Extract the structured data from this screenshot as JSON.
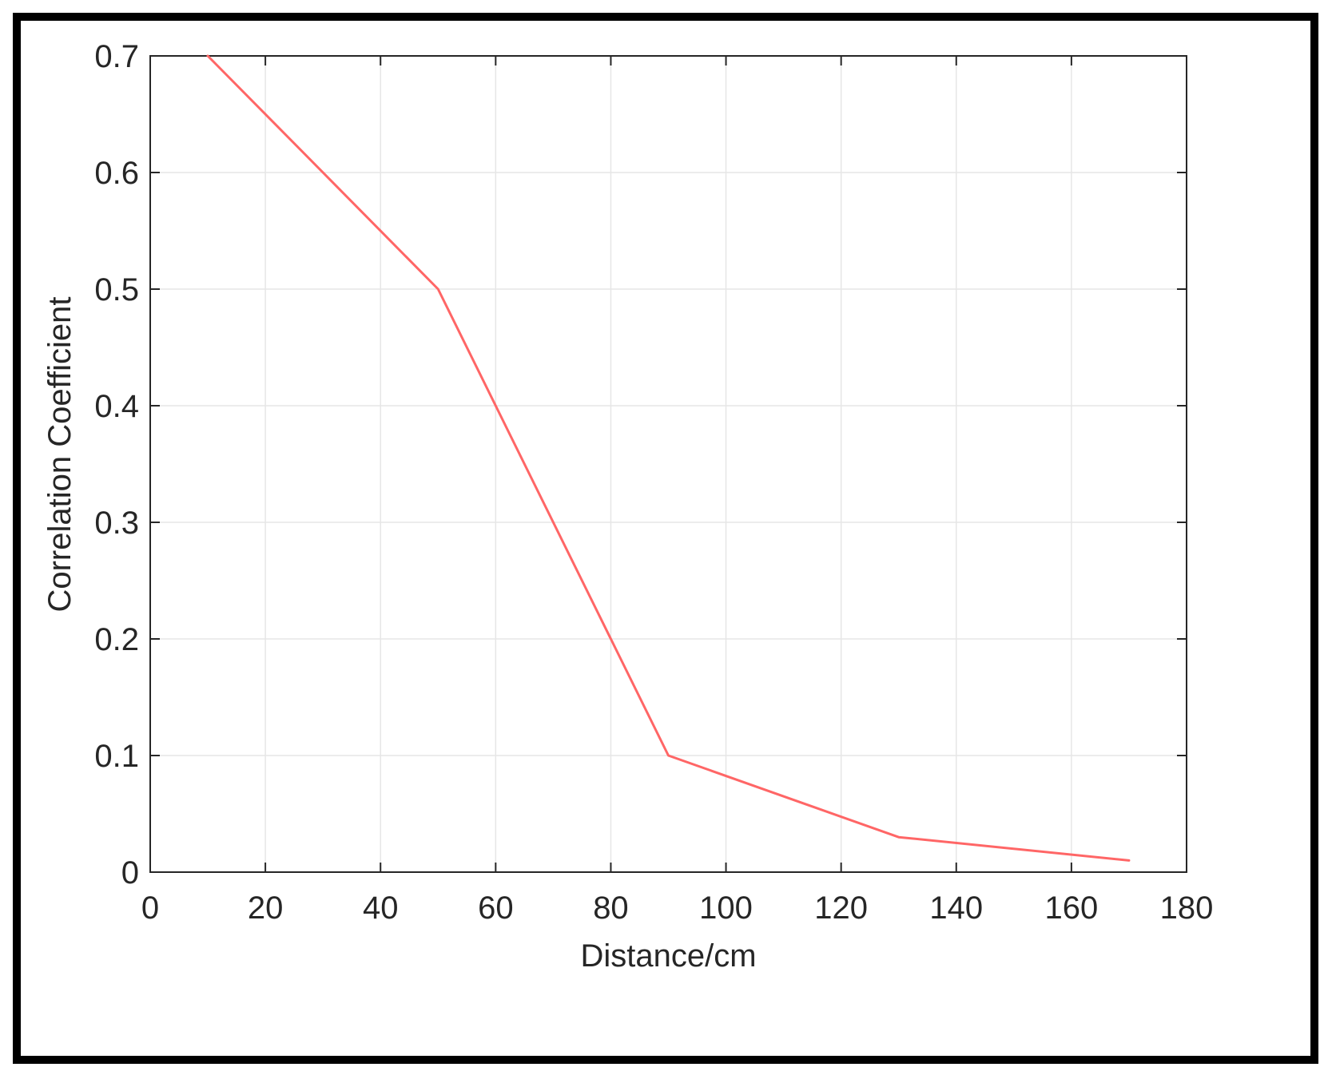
{
  "chart_data": {
    "type": "line",
    "title": "",
    "xlabel": "Distance/cm",
    "ylabel": "Correlation Coefficient",
    "xlim": [
      0,
      180
    ],
    "ylim": [
      0,
      0.7
    ],
    "xticks": [
      0,
      20,
      40,
      60,
      80,
      100,
      120,
      140,
      160,
      180
    ],
    "yticks": [
      0,
      0.1,
      0.2,
      0.3,
      0.4,
      0.5,
      0.6,
      0.7
    ],
    "xtick_labels": [
      "0",
      "20",
      "40",
      "60",
      "80",
      "100",
      "120",
      "140",
      "160",
      "180"
    ],
    "ytick_labels": [
      "0",
      "0.1",
      "0.2",
      "0.3",
      "0.4",
      "0.5",
      "0.6",
      "0.7"
    ],
    "grid": true,
    "legend": null,
    "series": [
      {
        "color": "#ff6666",
        "x": [
          10,
          50,
          90,
          130,
          170
        ],
        "y": [
          0.7,
          0.5,
          0.1,
          0.03,
          0.01
        ]
      }
    ]
  },
  "colors": {
    "frame": "#000000",
    "axes": "#262626",
    "grid": "#e6e6e6",
    "line": "#ff6666"
  }
}
